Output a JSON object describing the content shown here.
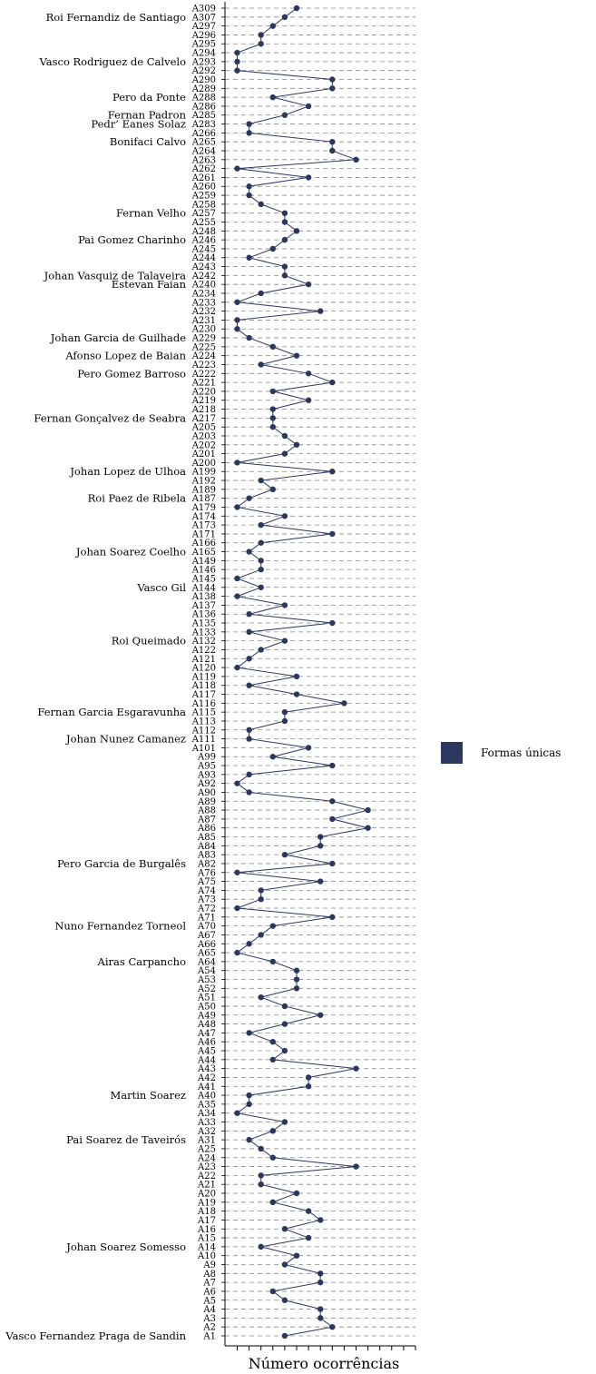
{
  "chart_data": {
    "type": "line",
    "orientation": "horizontal",
    "title": "",
    "xlabel": "Número ocorrências",
    "ylabel": "",
    "xlim": [
      0,
      16
    ],
    "grid": "dashed horizontal",
    "legend_position": "right",
    "color": "#2b375e",
    "series": [
      {
        "name": "Formas únicas",
        "categories": [
          "A309",
          "A307",
          "A297",
          "A296",
          "A295",
          "A294",
          "A293",
          "A292",
          "A290",
          "A289",
          "A288",
          "A286",
          "A285",
          "A283",
          "A266",
          "A265",
          "A264",
          "A263",
          "A262",
          "A261",
          "A260",
          "A259",
          "A258",
          "A257",
          "A255",
          "A248",
          "A246",
          "A245",
          "A244",
          "A243",
          "A242",
          "A240",
          "A234",
          "A233",
          "A232",
          "A231",
          "A230",
          "A229",
          "A225",
          "A224",
          "A223",
          "A222",
          "A221",
          "A220",
          "A219",
          "A218",
          "A217",
          "A205",
          "A203",
          "A202",
          "A201",
          "A200",
          "A199",
          "A192",
          "A189",
          "A187",
          "A179",
          "A174",
          "A173",
          "A171",
          "A166",
          "A165",
          "A149",
          "A146",
          "A145",
          "A144",
          "A138",
          "A137",
          "A136",
          "A135",
          "A133",
          "A132",
          "A122",
          "A121",
          "A120",
          "A119",
          "A118",
          "A117",
          "A116",
          "A115",
          "A113",
          "A112",
          "A111",
          "A101",
          "A99",
          "A95",
          "A93",
          "A92",
          "A90",
          "A89",
          "A88",
          "A87",
          "A86",
          "A85",
          "A84",
          "A83",
          "A82",
          "A76",
          "A75",
          "A74",
          "A73",
          "A72",
          "A71",
          "A70",
          "A67",
          "A66",
          "A65",
          "A64",
          "A54",
          "A53",
          "A52",
          "A51",
          "A50",
          "A49",
          "A48",
          "A47",
          "A46",
          "A45",
          "A44",
          "A43",
          "A42",
          "A41",
          "A40",
          "A35",
          "A34",
          "A33",
          "A32",
          "A31",
          "A25",
          "A24",
          "A23",
          "A22",
          "A21",
          "A20",
          "A19",
          "A18",
          "A17",
          "A16",
          "A15",
          "A14",
          "A10",
          "A9",
          "A8",
          "A7",
          "A6",
          "A5",
          "A4",
          "A3",
          "A2",
          "A1"
        ],
        "values": [
          5,
          4,
          3,
          2,
          2,
          0,
          0,
          0,
          8,
          8,
          3,
          6,
          4,
          1,
          1,
          8,
          8,
          10,
          0,
          6,
          1,
          1,
          2,
          4,
          4,
          5,
          4,
          3,
          1,
          4,
          4,
          6,
          2,
          0,
          7,
          0,
          0,
          1,
          3,
          5,
          2,
          6,
          8,
          3,
          6,
          3,
          3,
          3,
          4,
          5,
          4,
          0,
          8,
          2,
          3,
          1,
          0,
          4,
          2,
          8,
          2,
          1,
          2,
          2,
          0,
          2,
          0,
          4,
          1,
          8,
          1,
          4,
          2,
          1,
          0,
          5,
          1,
          5,
          9,
          4,
          4,
          1,
          1,
          6,
          3,
          8,
          1,
          0,
          1,
          8,
          11,
          8,
          11,
          7,
          7,
          4,
          8,
          0,
          7,
          2,
          2,
          0,
          8,
          3,
          2,
          1,
          0,
          3,
          5,
          5,
          5,
          2,
          4,
          7,
          4,
          1,
          3,
          4,
          3,
          10,
          6,
          6,
          1,
          1,
          0,
          4,
          3,
          1,
          2,
          3,
          10,
          2,
          2,
          5,
          3,
          6,
          7,
          4,
          6,
          2,
          5,
          4,
          7,
          7,
          3,
          4,
          7,
          7,
          8,
          4
        ]
      }
    ],
    "author_labels": [
      {
        "text": "Roi Fernandiz de Santiago",
        "row": "A307"
      },
      {
        "text": "Vasco Rodriguez de Calvelo",
        "row": "A293"
      },
      {
        "text": "Pero da Ponte",
        "row": "A288"
      },
      {
        "text": "Fernan Padron",
        "row": "A285"
      },
      {
        "text": "Pedr’ Eanes Solaz",
        "row": "A283"
      },
      {
        "text": "Bonifaci Calvo",
        "row": "A265"
      },
      {
        "text": "Fernan Velho",
        "row": "A257"
      },
      {
        "text": "Pai Gomez Charinho",
        "row": "A246"
      },
      {
        "text": "Johan Vasquiz de Talaveira",
        "row": "A242"
      },
      {
        "text": "Estevan Faian",
        "row": "A240"
      },
      {
        "text": "Johan Garcia de Guilhade",
        "row": "A229"
      },
      {
        "text": "Afonso Lopez de Baian",
        "row": "A224"
      },
      {
        "text": "Pero Gomez Barroso",
        "row": "A222"
      },
      {
        "text": "Fernan Gonçalvez de Seabra",
        "row": "A217"
      },
      {
        "text": "Johan Lopez de Ulhoa",
        "row": "A199"
      },
      {
        "text": "Roi Paez de Ribela",
        "row": "A187"
      },
      {
        "text": "Johan Soarez Coelho",
        "row": "A165"
      },
      {
        "text": "Vasco Gil",
        "row": "A144"
      },
      {
        "text": "Roi Queimado",
        "row": "A132"
      },
      {
        "text": "Fernan Garcia Esgaravunha",
        "row": "A115"
      },
      {
        "text": "Johan Nunez Camanez",
        "row": "A111"
      },
      {
        "text": "Pero Garcia de Burgalês",
        "row": "A82"
      },
      {
        "text": "Nuno Fernandez Torneol",
        "row": "A70"
      },
      {
        "text": "Airas Carpancho",
        "row": "A64"
      },
      {
        "text": "Martin Soarez",
        "row": "A40"
      },
      {
        "text": "Pai Soarez de Taveirós",
        "row": "A31"
      },
      {
        "text": "Johan Soarez Somesso",
        "row": "A14"
      },
      {
        "text": "Vasco Fernandez Praga de Sandin",
        "row": "A1"
      }
    ]
  },
  "legend": {
    "label": "Formas únicas",
    "color": "#2b375e"
  }
}
